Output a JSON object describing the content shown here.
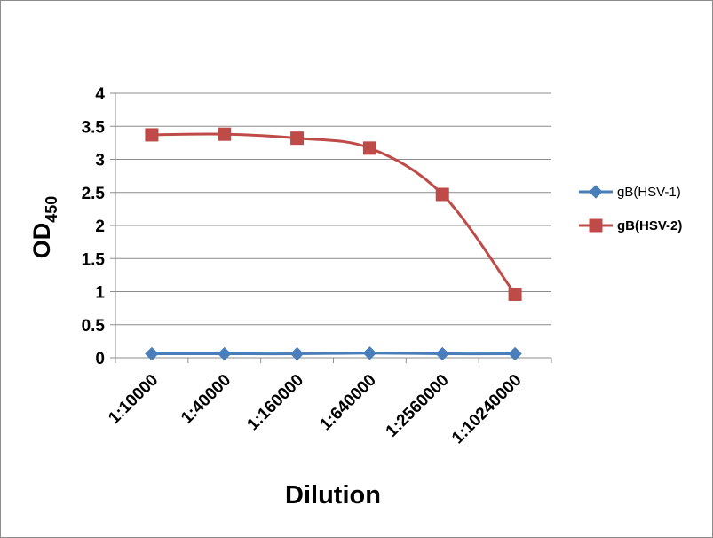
{
  "chart_data": {
    "type": "line",
    "categories": [
      "1:10000",
      "1:40000",
      "1:160000",
      "1:640000",
      "1:2560000",
      "1:10240000"
    ],
    "series": [
      {
        "name": "gB(HSV-1)",
        "values": [
          0.06,
          0.06,
          0.06,
          0.07,
          0.06,
          0.06
        ],
        "color": "#4a7ebb",
        "marker": "diamond",
        "legend_bold": false
      },
      {
        "name": "gB(HSV-2)",
        "values": [
          3.37,
          3.38,
          3.32,
          3.17,
          2.47,
          0.96
        ],
        "color": "#be4b48",
        "marker": "square",
        "legend_bold": true
      }
    ],
    "ylim": [
      0,
      4
    ],
    "yticks": [
      "0",
      "0.5",
      "1",
      "1.5",
      "2",
      "2.5",
      "3",
      "3.5",
      "4"
    ],
    "ylabel": {
      "main": "OD",
      "subscript": "450"
    },
    "xlabel": "Dilution",
    "grid": true,
    "legend_position": "right",
    "smooth": true
  }
}
